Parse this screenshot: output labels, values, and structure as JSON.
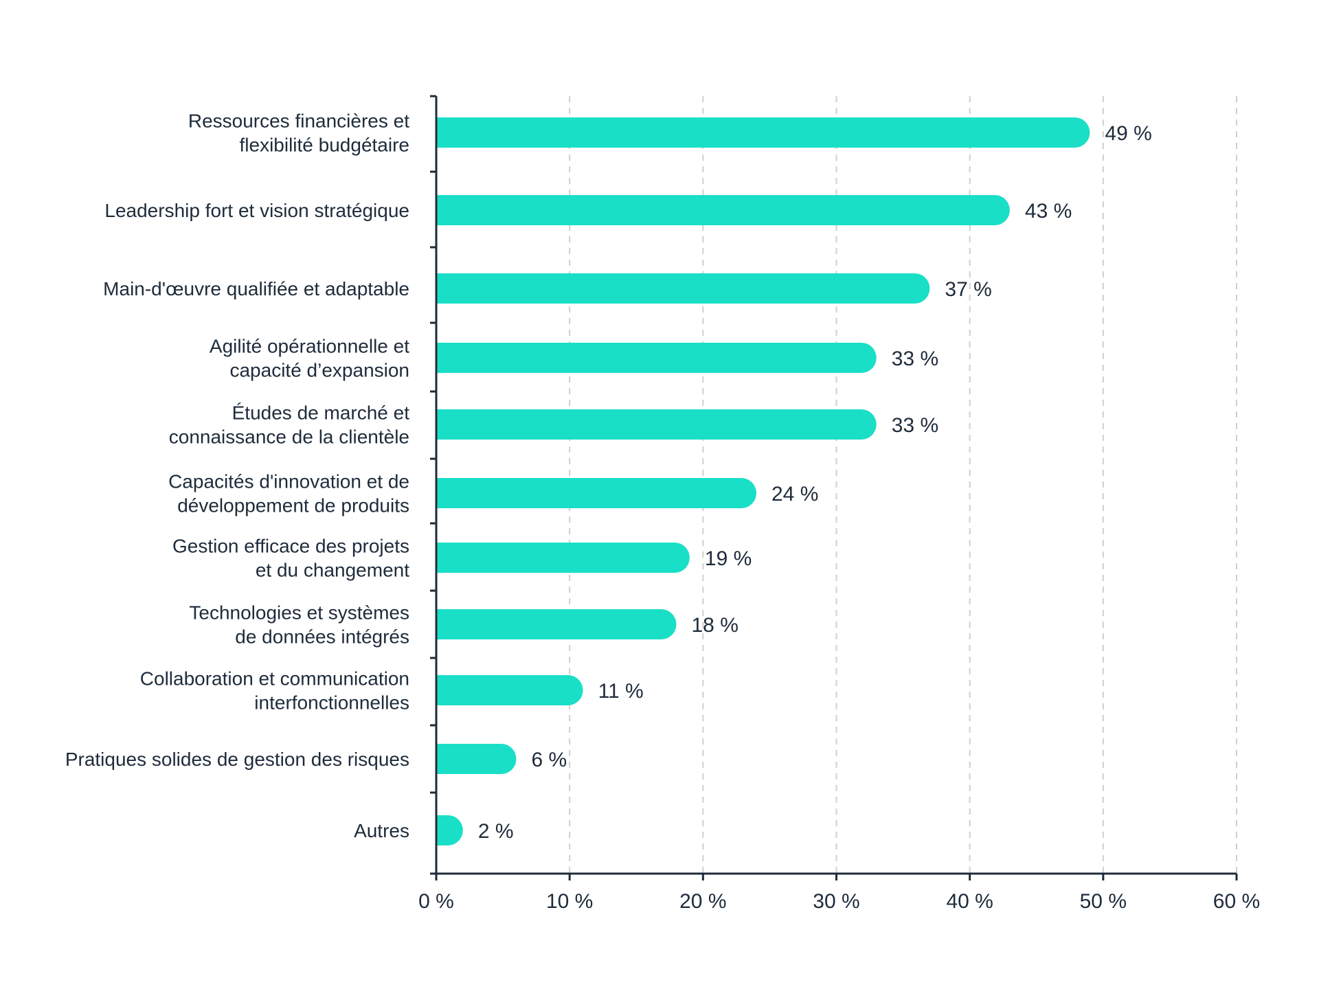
{
  "chart_data": {
    "type": "bar",
    "orientation": "horizontal",
    "title": "",
    "xlabel": "",
    "ylabel": "",
    "xlim": [
      0,
      60
    ],
    "x_ticks": [
      0,
      10,
      20,
      30,
      40,
      50,
      60
    ],
    "tick_suffix": " %",
    "grid": "vertical dashed",
    "bar_color": "#1adfc7",
    "axis_color": "#1e2b3a",
    "grid_color": "#cfcfcf",
    "categories": [
      [
        "Ressources financières et",
        "flexibilité budgétaire"
      ],
      [
        "Leadership fort et vision stratégique"
      ],
      [
        "Main-d'œuvre qualifiée et adaptable"
      ],
      [
        "Agilité opérationnelle et",
        "capacité d’expansion"
      ],
      [
        "Études de marché et",
        "connaissance de la clientèle"
      ],
      [
        "Capacités d'innovation et de",
        "développement de produits"
      ],
      [
        "Gestion efficace des projets",
        "et du changement"
      ],
      [
        "Technologies et systèmes",
        "de données intégrés"
      ],
      [
        "Collaboration et communication",
        "interfonctionnelles"
      ],
      [
        "Pratiques solides de gestion des risques"
      ],
      [
        "Autres"
      ]
    ],
    "values": [
      49,
      43,
      37,
      33,
      33,
      24,
      19,
      18,
      11,
      6,
      2
    ],
    "value_labels": [
      "49 %",
      "43 %",
      "37 %",
      "33 %",
      "33 %",
      "24 %",
      "19 %",
      "18 %",
      "11 %",
      "6 %",
      "2 %"
    ]
  }
}
